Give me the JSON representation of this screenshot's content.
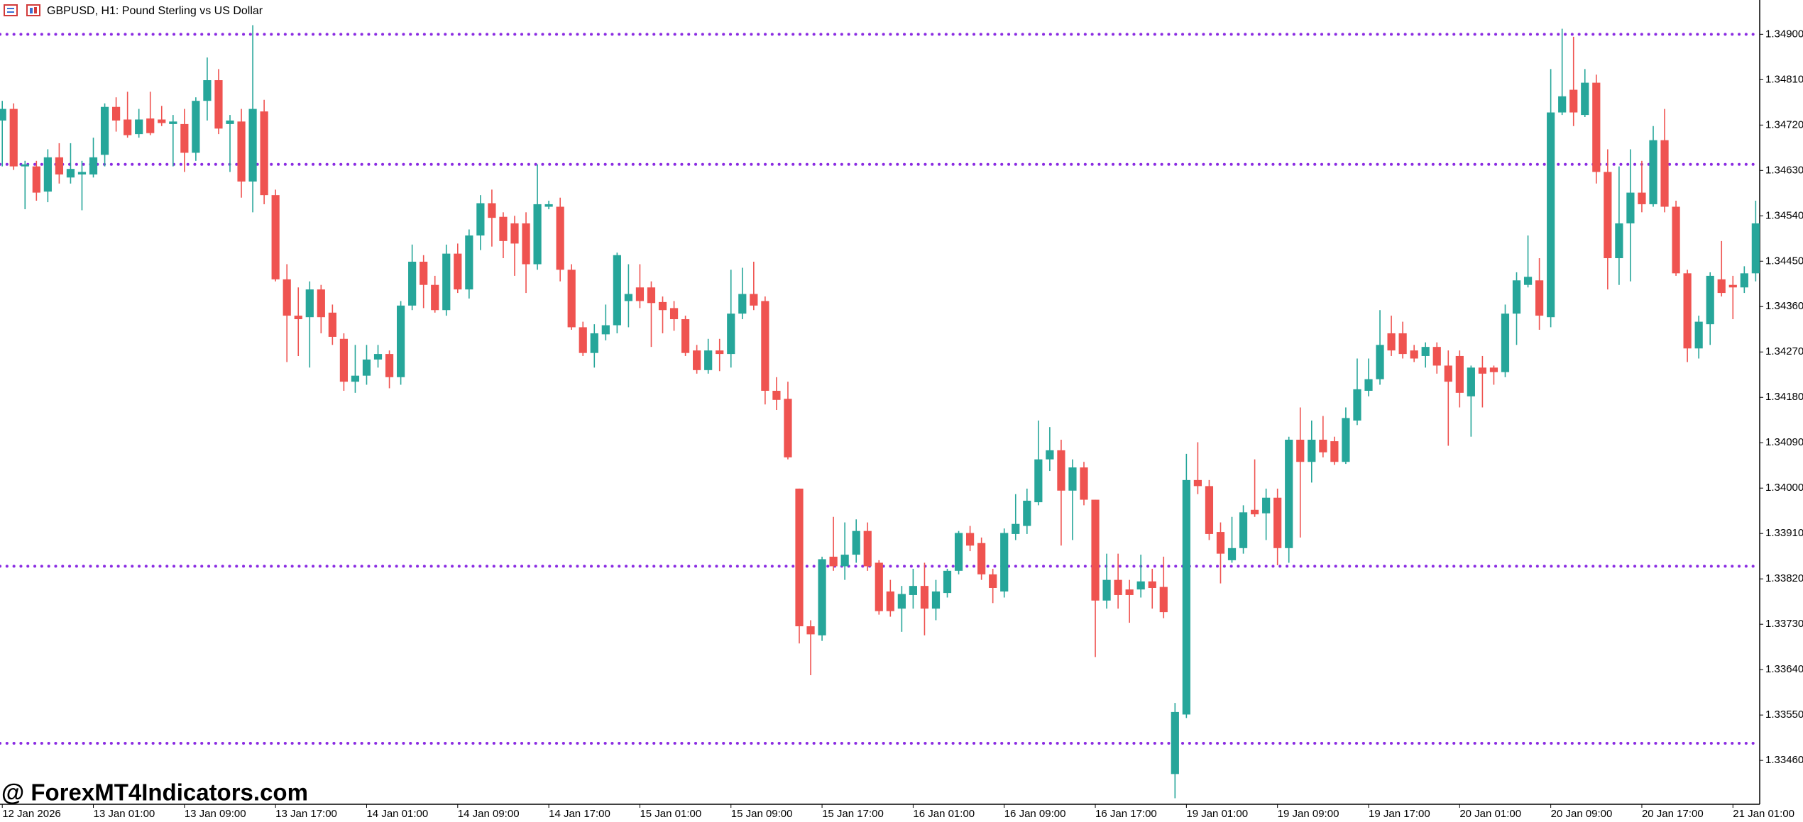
{
  "chart_data": {
    "type": "candlestick",
    "title": "GBPUSD, H1:  Pound Sterling vs US Dollar",
    "watermark": "@ ForexMT4Indicators.com",
    "up_color": "#26a69a",
    "down_color": "#ef5350",
    "level_color": "#8a2be2",
    "ylim": [
      1.33373,
      1.34968
    ],
    "yticks": [
      {
        "value": 1.349,
        "label": "1.34900"
      },
      {
        "value": 1.3481,
        "label": "1.34810"
      },
      {
        "value": 1.3472,
        "label": "1.34720"
      },
      {
        "value": 1.3463,
        "label": "1.34630"
      },
      {
        "value": 1.3454,
        "label": "1.34540"
      },
      {
        "value": 1.3445,
        "label": "1.34450"
      },
      {
        "value": 1.3436,
        "label": "1.34360"
      },
      {
        "value": 1.3427,
        "label": "1.34270"
      },
      {
        "value": 1.3418,
        "label": "1.34180"
      },
      {
        "value": 1.3409,
        "label": "1.34090"
      },
      {
        "value": 1.34,
        "label": "1.34000"
      },
      {
        "value": 1.3391,
        "label": "1.33910"
      },
      {
        "value": 1.3382,
        "label": "1.33820"
      },
      {
        "value": 1.3373,
        "label": "1.33730"
      },
      {
        "value": 1.3364,
        "label": "1.33640"
      },
      {
        "value": 1.3355,
        "label": "1.33550"
      },
      {
        "value": 1.3346,
        "label": "1.33460"
      }
    ],
    "levels": [
      1.349,
      1.34642,
      1.33845,
      1.33494
    ],
    "categories": [
      "12 Jan 2026",
      null,
      null,
      null,
      null,
      null,
      null,
      null,
      "13 Jan 01:00",
      null,
      null,
      null,
      null,
      null,
      null,
      null,
      "13 Jan 09:00",
      null,
      null,
      null,
      null,
      null,
      null,
      null,
      "13 Jan 17:00",
      null,
      null,
      null,
      null,
      null,
      null,
      null,
      "14 Jan 01:00",
      null,
      null,
      null,
      null,
      null,
      null,
      null,
      "14 Jan 09:00",
      null,
      null,
      null,
      null,
      null,
      null,
      null,
      "14 Jan 17:00",
      null,
      null,
      null,
      null,
      null,
      null,
      null,
      "15 Jan 01:00",
      null,
      null,
      null,
      null,
      null,
      null,
      null,
      "15 Jan 09:00",
      null,
      null,
      null,
      null,
      null,
      null,
      null,
      "15 Jan 17:00",
      null,
      null,
      null,
      null,
      null,
      null,
      null,
      "16 Jan 01:00",
      null,
      null,
      null,
      null,
      null,
      null,
      null,
      "16 Jan 09:00",
      null,
      null,
      null,
      null,
      null,
      null,
      null,
      "16 Jan 17:00",
      null,
      null,
      null,
      null,
      null,
      null,
      null,
      "19 Jan 01:00",
      null,
      null,
      null,
      null,
      null,
      null,
      null,
      "19 Jan 09:00",
      null,
      null,
      null,
      null,
      null,
      null,
      null,
      "19 Jan 17:00",
      null,
      null,
      null,
      null,
      null,
      null,
      null,
      "20 Jan 01:00",
      null,
      null,
      null,
      null,
      null,
      null,
      null,
      "20 Jan 09:00",
      null,
      null,
      null,
      null,
      null,
      null,
      null,
      "20 Jan 17:00",
      null,
      null,
      null,
      null,
      null,
      null,
      null,
      "21 Jan 01:00",
      null,
      null
    ],
    "open": [
      1.34729,
      1.34752,
      1.34638,
      1.34638,
      1.34588,
      1.34656,
      1.34616,
      1.34622,
      1.34622,
      1.34661,
      1.34756,
      1.34731,
      1.34702,
      1.34733,
      1.34731,
      1.34722,
      1.34722,
      1.34665,
      1.34768,
      1.34809,
      1.34722,
      1.34727,
      1.34608,
      1.34747,
      1.34581,
      1.34414,
      1.34342,
      1.34339,
      1.34394,
      1.34348,
      1.34296,
      1.34211,
      1.34223,
      1.34255,
      1.34266,
      1.3422,
      1.34362,
      1.34449,
      1.34403,
      1.34353,
      1.34465,
      1.34394,
      1.34501,
      1.34565,
      1.34538,
      1.34525,
      1.34525,
      1.34444,
      1.34558,
      1.34558,
      1.34433,
      1.34319,
      1.34268,
      1.34305,
      1.34323,
      1.34371,
      1.34398,
      1.34398,
      1.34369,
      1.34357,
      1.34335,
      1.34273,
      1.34234,
      1.34273,
      1.34266,
      1.34346,
      1.34385,
      1.34371,
      1.34193,
      1.34177,
      1.33999,
      1.33726,
      1.33708,
      1.33864,
      1.33845,
      1.33868,
      1.33915,
      1.33852,
      1.33795,
      1.33761,
      1.33788,
      1.33806,
      1.33761,
      1.33792,
      1.33836,
      1.33911,
      1.33891,
      1.33829,
      1.33795,
      1.33909,
      1.33925,
      1.33972,
      1.34057,
      1.34075,
      1.33995,
      1.34041,
      1.33977,
      1.33777,
      1.33818,
      1.33799,
      1.33799,
      1.33815,
      1.33804,
      1.33433,
      1.33551,
      1.34016,
      1.34004,
      1.33913,
      1.33857,
      1.33881,
      1.33957,
      1.3395,
      1.33981,
      1.33881,
      1.34096,
      1.34052,
      1.34096,
      1.34093,
      1.34052,
      1.34134,
      1.34193,
      1.34216,
      1.34307,
      1.34307,
      1.34273,
      1.34262,
      1.3428,
      1.34243,
      1.34262,
      1.34182,
      1.34239,
      1.34239,
      1.3423,
      1.34346,
      1.34403,
      1.34412,
      1.34339,
      1.34745,
      1.3479,
      1.3474,
      1.34804,
      1.34627,
      1.34456,
      1.34525,
      1.34586,
      1.34563,
      1.3469,
      1.34558,
      1.34426,
      1.34277,
      1.34325,
      1.34414,
      1.34403,
      1.34398,
      1.34426
    ],
    "high": [
      1.34768,
      1.34763,
      1.34649,
      1.34649,
      1.34672,
      1.34684,
      1.34684,
      1.34649,
      1.34695,
      1.34763,
      1.34775,
      1.34786,
      1.34752,
      1.34786,
      1.34758,
      1.3474,
      1.34752,
      1.34775,
      1.34854,
      1.34831,
      1.3474,
      1.34752,
      1.34918,
      1.3477,
      1.34592,
      1.34444,
      1.34398,
      1.3441,
      1.34403,
      1.34364,
      1.34307,
      1.34284,
      1.34284,
      1.34284,
      1.34273,
      1.34371,
      1.34483,
      1.34462,
      1.34421,
      1.34483,
      1.34485,
      1.34513,
      1.34581,
      1.34592,
      1.34547,
      1.3454,
      1.34547,
      1.34642,
      1.3457,
      1.34576,
      1.34444,
      1.3433,
      1.34325,
      1.34364,
      1.34467,
      1.34444,
      1.34444,
      1.3441,
      1.3438,
      1.34371,
      1.34342,
      1.34284,
      1.34296,
      1.34296,
      1.34433,
      1.34437,
      1.34449,
      1.3438,
      1.3422,
      1.34211,
      1.33999,
      1.33738,
      1.33864,
      1.33943,
      1.33932,
      1.33938,
      1.33932,
      1.33857,
      1.33818,
      1.33806,
      1.3384,
      1.33852,
      1.33818,
      1.3384,
      1.33915,
      1.33925,
      1.33902,
      1.3384,
      1.3392,
      1.33988,
      1.33999,
      1.34134,
      1.34121,
      1.34096,
      1.34057,
      1.34052,
      1.33977,
      1.3387,
      1.3387,
      1.33818,
      1.33868,
      1.3384,
      1.33864,
      1.33574,
      1.34068,
      1.34091,
      1.34016,
      1.33932,
      1.33943,
      1.33966,
      1.34057,
      1.33999,
      1.33999,
      1.34102,
      1.3416,
      1.34134,
      1.34143,
      1.34102,
      1.3416,
      1.34257,
      1.34257,
      1.34353,
      1.34342,
      1.3433,
      1.34284,
      1.34289,
      1.34289,
      1.34273,
      1.34273,
      1.34243,
      1.34262,
      1.34243,
      1.34364,
      1.34428,
      1.34501,
      1.34456,
      1.34831,
      1.34911,
      1.34895,
      1.34831,
      1.3482,
      1.34672,
      1.34638,
      1.34672,
      1.34649,
      1.34718,
      1.34752,
      1.3457,
      1.34433,
      1.34342,
      1.34428,
      1.3449,
      1.34421,
      1.3444,
      1.3457
    ],
    "low": [
      1.34638,
      1.34631,
      1.34553,
      1.3457,
      1.34567,
      1.34604,
      1.34604,
      1.34551,
      1.34616,
      1.34638,
      1.34707,
      1.34695,
      1.34695,
      1.347,
      1.34718,
      1.34638,
      1.34627,
      1.34649,
      1.34729,
      1.34702,
      1.34627,
      1.34576,
      1.34547,
      1.34563,
      1.3441,
      1.3425,
      1.34262,
      1.34239,
      1.34307,
      1.34284,
      1.34193,
      1.34189,
      1.34205,
      1.34239,
      1.34198,
      1.34205,
      1.34353,
      1.34357,
      1.34348,
      1.34342,
      1.34387,
      1.34376,
      1.34472,
      1.34479,
      1.34456,
      1.34421,
      1.34387,
      1.34433,
      1.34553,
      1.3441,
      1.34314,
      1.34262,
      1.34239,
      1.34293,
      1.34307,
      1.34319,
      1.34357,
      1.3428,
      1.34307,
      1.34312,
      1.34262,
      1.34227,
      1.34227,
      1.34232,
      1.34239,
      1.34335,
      1.34353,
      1.34166,
      1.34155,
      1.34057,
      1.33692,
      1.33629,
      1.33697,
      1.33836,
      1.33818,
      1.33852,
      1.33836,
      1.33749,
      1.33745,
      1.33715,
      1.33761,
      1.33708,
      1.33738,
      1.33783,
      1.33829,
      1.33875,
      1.33818,
      1.33772,
      1.33783,
      1.33897,
      1.33909,
      1.33966,
      1.34034,
      1.33886,
      1.33897,
      1.33966,
      1.33665,
      1.33761,
      1.33761,
      1.33733,
      1.33783,
      1.33761,
      1.33742,
      1.33385,
      1.33544,
      1.33988,
      1.33897,
      1.33811,
      1.33852,
      1.3387,
      1.33943,
      1.33897,
      1.33847,
      1.33852,
      1.33902,
      1.34011,
      1.34061,
      1.34046,
      1.34048,
      1.34125,
      1.34182,
      1.34205,
      1.34262,
      1.34257,
      1.3425,
      1.34239,
      1.34227,
      1.34084,
      1.3416,
      1.34102,
      1.3416,
      1.34205,
      1.3422,
      1.34284,
      1.34398,
      1.34314,
      1.34319,
      1.3474,
      1.34718,
      1.34736,
      1.34604,
      1.34394,
      1.34403,
      1.3441,
      1.34547,
      1.34558,
      1.34547,
      1.34421,
      1.3425,
      1.34257,
      1.34284,
      1.3438,
      1.34335,
      1.34387,
      1.3441
    ],
    "close": [
      1.34752,
      1.34638,
      1.34642,
      1.34586,
      1.34656,
      1.34622,
      1.34633,
      1.34627,
      1.34656,
      1.34756,
      1.34729,
      1.347,
      1.34731,
      1.34704,
      1.34724,
      1.34727,
      1.34665,
      1.34768,
      1.34809,
      1.34713,
      1.34729,
      1.34608,
      1.34752,
      1.34581,
      1.34414,
      1.34342,
      1.34335,
      1.34394,
      1.34339,
      1.343,
      1.34211,
      1.34223,
      1.34255,
      1.34266,
      1.3422,
      1.34362,
      1.34449,
      1.34403,
      1.34353,
      1.34465,
      1.34394,
      1.34501,
      1.34565,
      1.34536,
      1.3449,
      1.34485,
      1.34444,
      1.34563,
      1.34563,
      1.34433,
      1.34319,
      1.34268,
      1.34307,
      1.34323,
      1.34462,
      1.34385,
      1.34371,
      1.34367,
      1.34353,
      1.34335,
      1.34268,
      1.34234,
      1.34273,
      1.34266,
      1.34346,
      1.34385,
      1.34362,
      1.34193,
      1.34175,
      1.34061,
      1.33726,
      1.3371,
      1.33859,
      1.33845,
      1.33868,
      1.33915,
      1.33845,
      1.33756,
      1.33756,
      1.3379,
      1.33806,
      1.33761,
      1.33795,
      1.33836,
      1.33911,
      1.33886,
      1.33829,
      1.33802,
      1.33911,
      1.33929,
      1.33975,
      1.34057,
      1.34075,
      1.33995,
      1.34041,
      1.33977,
      1.33777,
      1.33818,
      1.33788,
      1.33788,
      1.33815,
      1.33802,
      1.33754,
      1.33556,
      1.34016,
      1.34004,
      1.33909,
      1.3387,
      1.33881,
      1.33952,
      1.33948,
      1.33981,
      1.33881,
      1.34096,
      1.34052,
      1.34096,
      1.34071,
      1.34052,
      1.34139,
      1.34196,
      1.34216,
      1.34284,
      1.34273,
      1.34266,
      1.34257,
      1.3428,
      1.34243,
      1.34211,
      1.34189,
      1.34239,
      1.34227,
      1.3423,
      1.34346,
      1.34412,
      1.34419,
      1.34342,
      1.34745,
      1.34777,
      1.34745,
      1.34804,
      1.34627,
      1.34456,
      1.34525,
      1.34586,
      1.34563,
      1.3469,
      1.34558,
      1.34426,
      1.34277,
      1.3433,
      1.34421,
      1.34387,
      1.34398,
      1.34426,
      1.34525
    ]
  }
}
